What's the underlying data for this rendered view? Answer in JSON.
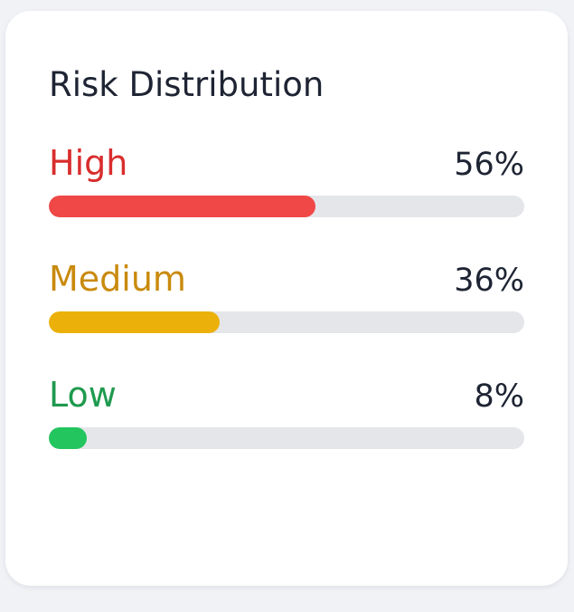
{
  "card": {
    "title": "Risk Distribution"
  },
  "risks": [
    {
      "label": "High",
      "value_text": "56%",
      "percent": 56,
      "label_color": "#d92d2d",
      "bar_color": "#f04747"
    },
    {
      "label": "Medium",
      "value_text": "36%",
      "percent": 36,
      "label_color": "#c98a0c",
      "bar_color": "#ebb10a"
    },
    {
      "label": "Low",
      "value_text": "8%",
      "percent": 8,
      "label_color": "#1f9a4e",
      "bar_color": "#22c55e"
    }
  ]
}
